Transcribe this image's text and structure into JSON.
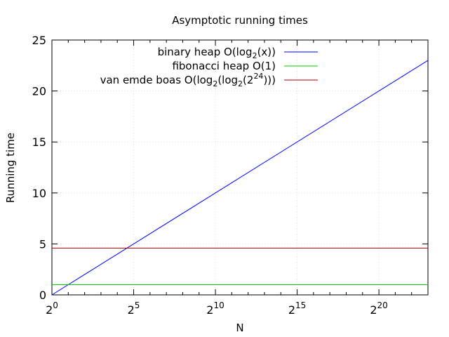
{
  "chart_data": {
    "type": "line",
    "title": "Asymptotic running times",
    "xlabel": "N",
    "ylabel": "Running time",
    "xscale": "log2",
    "xlim_exponent": [
      0,
      23
    ],
    "ylim": [
      0,
      25
    ],
    "x_ticks": [
      {
        "base": "2",
        "exp": "0",
        "value": 0
      },
      {
        "base": "2",
        "exp": "5",
        "value": 5
      },
      {
        "base": "2",
        "exp": "10",
        "value": 10
      },
      {
        "base": "2",
        "exp": "15",
        "value": 15
      },
      {
        "base": "2",
        "exp": "20",
        "value": 20
      }
    ],
    "y_ticks": [
      "0",
      "5",
      "10",
      "15",
      "20",
      "25"
    ],
    "grid": true,
    "legend_position": "top-right",
    "series": [
      {
        "name": "binary heap O(log2(x))",
        "label_parts": [
          "binary heap O(log",
          "2",
          "(x))"
        ],
        "color": "#0000ff",
        "x_exp": [
          0,
          23
        ],
        "y": [
          0,
          23
        ]
      },
      {
        "name": "fibonacci heap O(1)",
        "label_parts": [
          "fibonacci heap O(1)"
        ],
        "color": "#00cc00",
        "x_exp": [
          0,
          23
        ],
        "y": [
          1,
          1
        ]
      },
      {
        "name": "van emde boas O(log2(log2(2^24)))",
        "label_parts": [
          "van emde boas O(log",
          "2",
          "(log",
          "2",
          "(2",
          "24",
          ")))"
        ],
        "color": "#aa0000",
        "x_exp": [
          0,
          23
        ],
        "y": [
          4.585,
          4.585
        ]
      }
    ]
  }
}
